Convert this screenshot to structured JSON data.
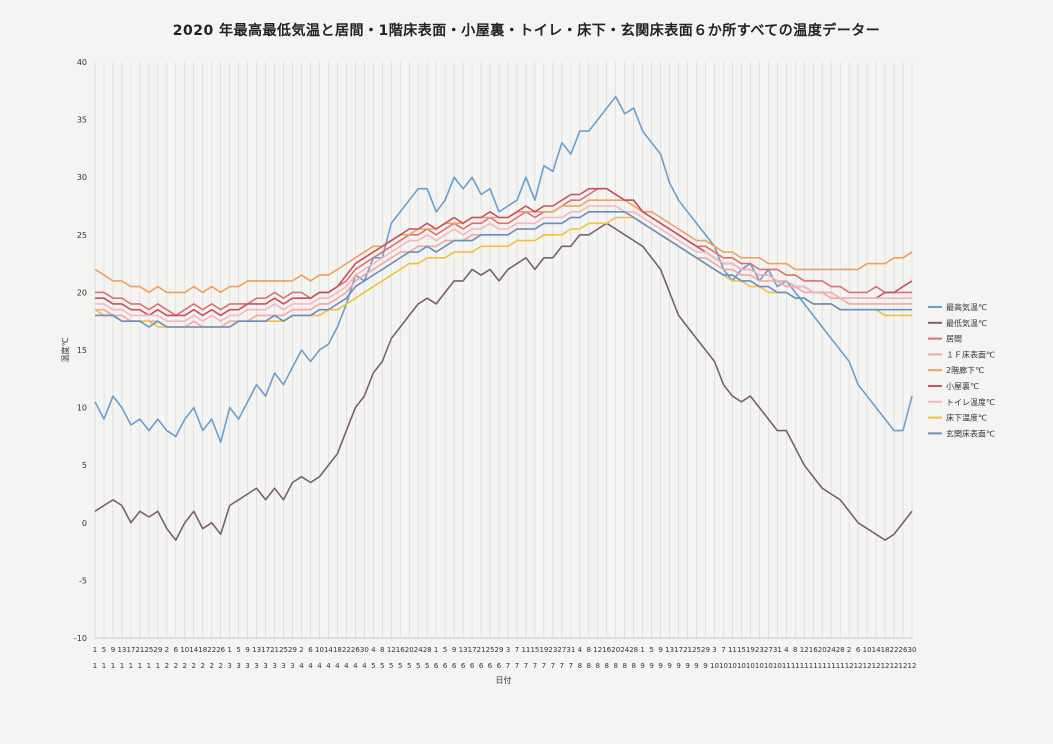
{
  "chart_data": {
    "type": "line",
    "title": "2020 年最高最低気温と居間・1階床表面・小屋裏・トイレ・床下・玄関床表面６か所すべての温度データー",
    "xlabel": "日付",
    "ylabel": "温度℃",
    "ylim": [
      -10,
      40
    ],
    "yticks": [
      -10,
      -5,
      0,
      5,
      10,
      15,
      20,
      25,
      30,
      35,
      40
    ],
    "x": [
      "1/1",
      "1/5",
      "1/9",
      "1/13",
      "1/17",
      "1/21",
      "1/25",
      "1/29",
      "2/2",
      "2/6",
      "2/10",
      "2/14",
      "2/18",
      "2/22",
      "2/26",
      "3/1",
      "3/5",
      "3/9",
      "3/13",
      "3/17",
      "3/21",
      "3/25",
      "3/29",
      "4/2",
      "4/6",
      "4/10",
      "4/14",
      "4/18",
      "4/22",
      "4/26",
      "4/30",
      "5/4",
      "5/8",
      "5/12",
      "5/16",
      "5/20",
      "5/24",
      "5/28",
      "6/1",
      "6/5",
      "6/9",
      "6/13",
      "6/17",
      "6/21",
      "6/25",
      "6/29",
      "7/3",
      "7/7",
      "7/11",
      "7/15",
      "7/19",
      "7/23",
      "7/27",
      "7/31",
      "8/4",
      "8/8",
      "8/12",
      "8/16",
      "8/20",
      "8/24",
      "8/28",
      "9/1",
      "9/5",
      "9/9",
      "9/13",
      "9/17",
      "9/21",
      "9/25",
      "9/29",
      "10/3",
      "10/7",
      "10/11",
      "10/15",
      "10/19",
      "10/23",
      "10/27",
      "10/31",
      "11/4",
      "11/8",
      "11/12",
      "11/16",
      "11/20",
      "11/24",
      "11/28",
      "12/2",
      "12/6",
      "12/10",
      "12/14",
      "12/18",
      "12/22",
      "12/26",
      "12/30"
    ],
    "x_tick_labels": {
      "day_row": [
        "1",
        "5",
        "9",
        "13",
        "17",
        "21",
        "25",
        "29",
        "2",
        "6",
        "10",
        "14",
        "18",
        "22",
        "26",
        "1",
        "5",
        "9",
        "13",
        "17",
        "21",
        "25",
        "29",
        "2",
        "6",
        "10",
        "14",
        "18",
        "22",
        "26",
        "30",
        "4",
        "8",
        "12",
        "16",
        "20",
        "24",
        "28",
        "1",
        "5",
        "9",
        "13",
        "17",
        "21",
        "25",
        "29",
        "3",
        "7",
        "11",
        "15",
        "19",
        "23",
        "27",
        "31",
        "4",
        "8",
        "12",
        "16",
        "20",
        "24",
        "28",
        "1",
        "5",
        "9",
        "13",
        "17",
        "21",
        "25",
        "29",
        "3",
        "7",
        "11",
        "15",
        "19",
        "23",
        "27",
        "31",
        "4",
        "8",
        "12",
        "16",
        "20",
        "24",
        "28",
        "2",
        "6",
        "10",
        "14",
        "18",
        "22",
        "26",
        "30"
      ],
      "month_row": [
        "1",
        "1",
        "1",
        "1",
        "1",
        "1",
        "1",
        "1",
        "2",
        "2",
        "2",
        "2",
        "2",
        "2",
        "2",
        "3",
        "3",
        "3",
        "3",
        "3",
        "3",
        "3",
        "3",
        "4",
        "4",
        "4",
        "4",
        "4",
        "4",
        "4",
        "4",
        "5",
        "5",
        "5",
        "5",
        "5",
        "5",
        "5",
        "6",
        "6",
        "6",
        "6",
        "6",
        "6",
        "6",
        "6",
        "7",
        "7",
        "7",
        "7",
        "7",
        "7",
        "7",
        "7",
        "8",
        "8",
        "8",
        "8",
        "8",
        "8",
        "8",
        "9",
        "9",
        "9",
        "9",
        "9",
        "9",
        "9",
        "9",
        "10",
        "10",
        "10",
        "10",
        "10",
        "10",
        "10",
        "10",
        "11",
        "11",
        "11",
        "11",
        "11",
        "11",
        "11",
        "12",
        "12",
        "12",
        "12",
        "12",
        "12",
        "12",
        "12"
      ]
    },
    "legend_position": "right",
    "grid": "vertical",
    "series": [
      {
        "name": "最高気温℃",
        "color": "#6a9fcf",
        "values": [
          10.5,
          9,
          11,
          10,
          8.5,
          9,
          8,
          9,
          8,
          7.5,
          9,
          10,
          8,
          9,
          7,
          10,
          9,
          10.5,
          12,
          11,
          13,
          12,
          13.5,
          15,
          14,
          15,
          15.5,
          17,
          19,
          21.5,
          21,
          23,
          23,
          26,
          27,
          28,
          29,
          29,
          27,
          28,
          30,
          29,
          30,
          28.5,
          29,
          27,
          27.5,
          28,
          30,
          28,
          31,
          30.5,
          33,
          32,
          34,
          34,
          35,
          36,
          37,
          35.5,
          36,
          34,
          33,
          32,
          29.5,
          28,
          27,
          26,
          25,
          24,
          22,
          21,
          22,
          22.5,
          21,
          22,
          20.5,
          21,
          20,
          19,
          18,
          17,
          16,
          15,
          14,
          12,
          11,
          10,
          9,
          8,
          8,
          11
        ]
      },
      {
        "name": "最低気温℃",
        "color": "#7a6072",
        "values": [
          1,
          1.5,
          2,
          1.5,
          0,
          1,
          0.5,
          1,
          -0.5,
          -1.5,
          0,
          1,
          -0.5,
          0,
          -1,
          1.5,
          2,
          2.5,
          3,
          2,
          3,
          2,
          3.5,
          4,
          3.5,
          4,
          5,
          6,
          8,
          10,
          11,
          13,
          14,
          16,
          17,
          18,
          19,
          19.5,
          19,
          20,
          21,
          21,
          22,
          21.5,
          22,
          21,
          22,
          22.5,
          23,
          22,
          23,
          23,
          24,
          24,
          25,
          25,
          25.5,
          26,
          25.5,
          25,
          24.5,
          24,
          23,
          22,
          20,
          18,
          17,
          16,
          15,
          14,
          12,
          11,
          10.5,
          11,
          10,
          9,
          8,
          8,
          6.5,
          5,
          4,
          3,
          2.5,
          2,
          1,
          0,
          -0.5,
          -1,
          -1.5,
          -1,
          0,
          1
        ]
      },
      {
        "name": "居間",
        "color": "#e07070",
        "values": [
          20,
          20,
          19.5,
          19.5,
          19,
          19,
          18.5,
          19,
          18.5,
          18,
          18.5,
          19,
          18.5,
          19,
          18.5,
          19,
          19,
          19,
          19.5,
          19.5,
          20,
          19.5,
          20,
          20,
          19.5,
          20,
          20,
          20.5,
          21,
          22,
          22.5,
          23,
          23.5,
          24,
          24.5,
          25,
          25,
          25.5,
          25,
          25.5,
          26,
          25.5,
          26,
          26,
          26.5,
          26,
          26,
          26.5,
          27,
          26.5,
          27,
          27,
          27.5,
          28,
          28,
          28.5,
          29,
          29,
          28.5,
          28,
          28,
          27,
          26.5,
          26,
          25.5,
          25,
          24.5,
          24,
          24,
          23.5,
          23,
          23,
          22.5,
          22.5,
          22,
          22,
          22,
          21.5,
          21.5,
          21,
          21,
          21,
          20.5,
          20.5,
          20,
          20,
          20,
          20.5,
          20,
          20,
          20,
          20
        ]
      },
      {
        "name": "１Ｆ床表面℃",
        "color": "#f2a8a0",
        "values": [
          18.5,
          18.5,
          18,
          18,
          17.5,
          17.5,
          17.5,
          17.5,
          17,
          17,
          17,
          17.5,
          17,
          17,
          17,
          17.5,
          17.5,
          17.5,
          18,
          18,
          18,
          18,
          18.5,
          18.5,
          18.5,
          19,
          19,
          19.5,
          20,
          21,
          21.5,
          22,
          22.5,
          23,
          23.5,
          23.5,
          24,
          24,
          24,
          24.5,
          24.5,
          24.5,
          25,
          25,
          25,
          25,
          25,
          25.5,
          25.5,
          25.5,
          26,
          26,
          26,
          26.5,
          26.5,
          27,
          27,
          27,
          27,
          27,
          26.5,
          26,
          25.5,
          25,
          24.5,
          24,
          23.5,
          23,
          23,
          22.5,
          22,
          22,
          21.5,
          21.5,
          21,
          21,
          21,
          20.5,
          20.5,
          20,
          20,
          20,
          19.5,
          19.5,
          19,
          19,
          19,
          19,
          19,
          19,
          19,
          19
        ]
      },
      {
        "name": "2階廊下℃",
        "color": "#f0a060",
        "values": [
          22,
          21.5,
          21,
          21,
          20.5,
          20.5,
          20,
          20.5,
          20,
          20,
          20,
          20.5,
          20,
          20.5,
          20,
          20.5,
          20.5,
          21,
          21,
          21,
          21,
          21,
          21,
          21.5,
          21,
          21.5,
          21.5,
          22,
          22.5,
          23,
          23.5,
          24,
          24,
          24.5,
          25,
          25,
          25.5,
          25.5,
          25.5,
          26,
          26,
          26,
          26.5,
          26.5,
          26.5,
          26.5,
          26.5,
          27,
          27,
          27,
          27,
          27,
          27.5,
          27.5,
          27.5,
          28,
          28,
          28,
          28,
          28,
          27.5,
          27,
          27,
          26.5,
          26,
          25.5,
          25,
          24.5,
          24.5,
          24,
          23.5,
          23.5,
          23,
          23,
          23,
          22.5,
          22.5,
          22.5,
          22,
          22,
          22,
          22,
          22,
          22,
          22,
          22,
          22.5,
          22.5,
          22.5,
          23,
          23,
          23.5
        ]
      },
      {
        "name": "小屋裏℃",
        "color": "#c85060",
        "values": [
          19.5,
          19.5,
          19,
          19,
          18.5,
          18.5,
          18,
          18.5,
          18,
          18,
          18,
          18.5,
          18,
          18.5,
          18,
          18.5,
          18.5,
          19,
          19,
          19,
          19.5,
          19,
          19.5,
          19.5,
          19.5,
          20,
          20,
          20.5,
          21.5,
          22.5,
          23,
          23.5,
          24,
          24.5,
          25,
          25.5,
          25.5,
          26,
          25.5,
          26,
          26.5,
          26,
          26.5,
          26.5,
          27,
          26.5,
          26.5,
          27,
          27.5,
          27,
          27.5,
          27.5,
          28,
          28.5,
          28.5,
          29,
          29,
          29,
          28.5,
          28,
          28,
          27,
          26.5,
          26,
          25.5,
          25,
          24.5,
          24,
          23.5,
          23,
          22.5,
          22.5,
          22,
          22,
          21.5,
          21.5,
          21,
          21,
          20.5,
          20.5,
          20,
          20,
          20,
          19.5,
          19.5,
          19.5,
          19.5,
          19.5,
          20,
          20,
          20.5,
          21
        ]
      },
      {
        "name": "トイレ温度℃",
        "color": "#f4b8c0",
        "values": [
          19,
          19,
          18.5,
          18.5,
          18,
          18,
          18,
          18,
          17.5,
          17.5,
          17.5,
          18,
          17.5,
          18,
          17.5,
          18,
          18,
          18.5,
          18.5,
          18.5,
          19,
          18.5,
          19,
          19,
          19,
          19.5,
          19.5,
          20,
          20.5,
          21.5,
          22,
          22.5,
          23,
          23.5,
          24,
          24.5,
          24.5,
          25,
          24.5,
          25,
          25.5,
          25,
          25.5,
          25.5,
          26,
          25.5,
          25.5,
          26,
          26,
          26,
          26.5,
          26.5,
          26.5,
          27,
          27,
          27.5,
          27.5,
          27.5,
          27.5,
          27,
          27,
          26.5,
          26,
          25.5,
          25,
          24.5,
          24,
          23.5,
          23.5,
          23,
          22.5,
          22.5,
          22,
          22,
          21.5,
          21.5,
          21,
          21,
          20.5,
          20.5,
          20,
          20,
          20,
          19.5,
          19.5,
          19.5,
          19.5,
          19.5,
          19.5,
          19.5,
          19.5,
          19.5
        ]
      },
      {
        "name": "床下温度℃",
        "color": "#f4c040",
        "values": [
          18.5,
          18,
          18,
          17.5,
          17.5,
          17.5,
          17.5,
          17,
          17,
          17,
          17,
          17,
          17,
          17,
          17,
          17,
          17.5,
          17.5,
          17.5,
          17.5,
          17.5,
          17.5,
          18,
          18,
          18,
          18,
          18.5,
          18.5,
          19,
          19.5,
          20,
          20.5,
          21,
          21.5,
          22,
          22.5,
          22.5,
          23,
          23,
          23,
          23.5,
          23.5,
          23.5,
          24,
          24,
          24,
          24,
          24.5,
          24.5,
          24.5,
          25,
          25,
          25,
          25.5,
          25.5,
          26,
          26,
          26,
          26.5,
          26.5,
          26.5,
          26,
          25.5,
          25,
          24.5,
          24,
          23.5,
          23,
          22.5,
          22,
          21.5,
          21,
          21,
          20.5,
          20.5,
          20,
          20,
          20,
          19.5,
          19.5,
          19,
          19,
          19,
          18.5,
          18.5,
          18.5,
          18.5,
          18.5,
          18,
          18,
          18,
          18
        ]
      },
      {
        "name": "玄関床表面℃",
        "color": "#6890c0",
        "values": [
          18,
          18,
          18,
          17.5,
          17.5,
          17.5,
          17,
          17.5,
          17,
          17,
          17,
          17,
          17,
          17,
          17,
          17,
          17.5,
          17.5,
          17.5,
          17.5,
          18,
          17.5,
          18,
          18,
          18,
          18.5,
          18.5,
          19,
          19.5,
          20.5,
          21,
          21.5,
          22,
          22.5,
          23,
          23.5,
          23.5,
          24,
          23.5,
          24,
          24.5,
          24.5,
          24.5,
          25,
          25,
          25,
          25,
          25.5,
          25.5,
          25.5,
          26,
          26,
          26,
          26.5,
          26.5,
          27,
          27,
          27,
          27,
          27,
          26.5,
          26,
          25.5,
          25,
          24.5,
          24,
          23.5,
          23,
          22.5,
          22,
          21.5,
          21.5,
          21,
          21,
          20.5,
          20.5,
          20,
          20,
          19.5,
          19.5,
          19,
          19,
          19,
          18.5,
          18.5,
          18.5,
          18.5,
          18.5,
          18.5,
          18.5,
          18.5,
          18.5
        ]
      }
    ]
  }
}
